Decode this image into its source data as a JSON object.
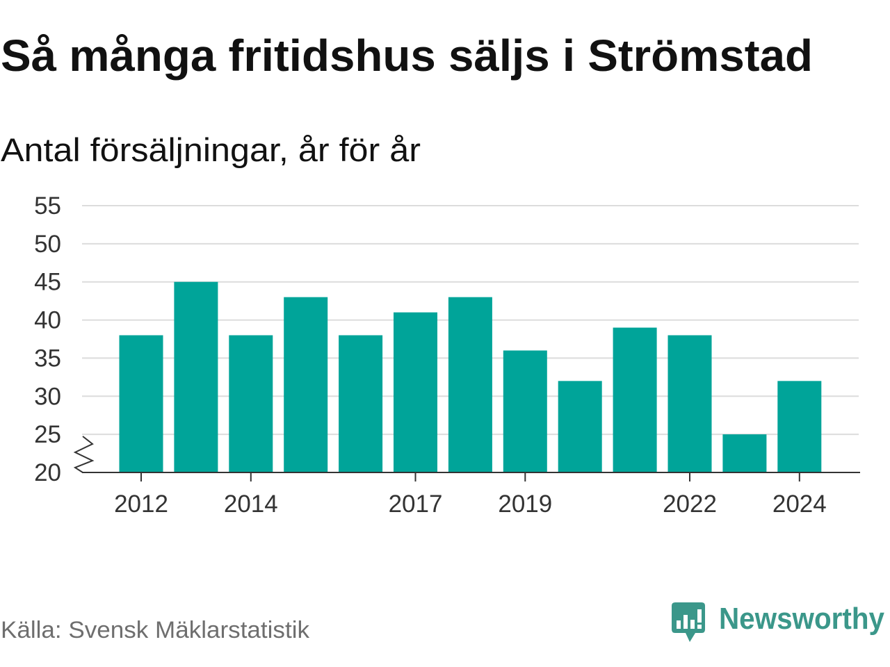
{
  "source": "Källa: Svensk Mäklarstatistik",
  "logo": {
    "text": "Newsworthy",
    "icon": "newsworthy-logo-icon"
  },
  "colors": {
    "bar": "#00a499",
    "logo": "#3b978a",
    "grid": "#dcdcdc",
    "axis": "#333333",
    "text": "#111111",
    "source": "#6e6e6e"
  },
  "chart_data": {
    "type": "bar",
    "title": "Så många fritidshus säljs i Strömstad",
    "subtitle": "Antal försäljningar, år för år",
    "x": [
      2012,
      2013,
      2014,
      2015,
      2016,
      2017,
      2018,
      2019,
      2020,
      2021,
      2022,
      2023,
      2024
    ],
    "values": [
      38,
      45,
      38,
      43,
      38,
      41,
      43,
      36,
      32,
      39,
      38,
      25,
      32
    ],
    "xtick_labels": [
      "2012",
      "2014",
      "2017",
      "2019",
      "2022",
      "2024"
    ],
    "yticks": [
      20,
      25,
      30,
      35,
      40,
      45,
      50,
      55
    ],
    "ylim": [
      20,
      55
    ],
    "grid": true,
    "axis_break": true
  }
}
